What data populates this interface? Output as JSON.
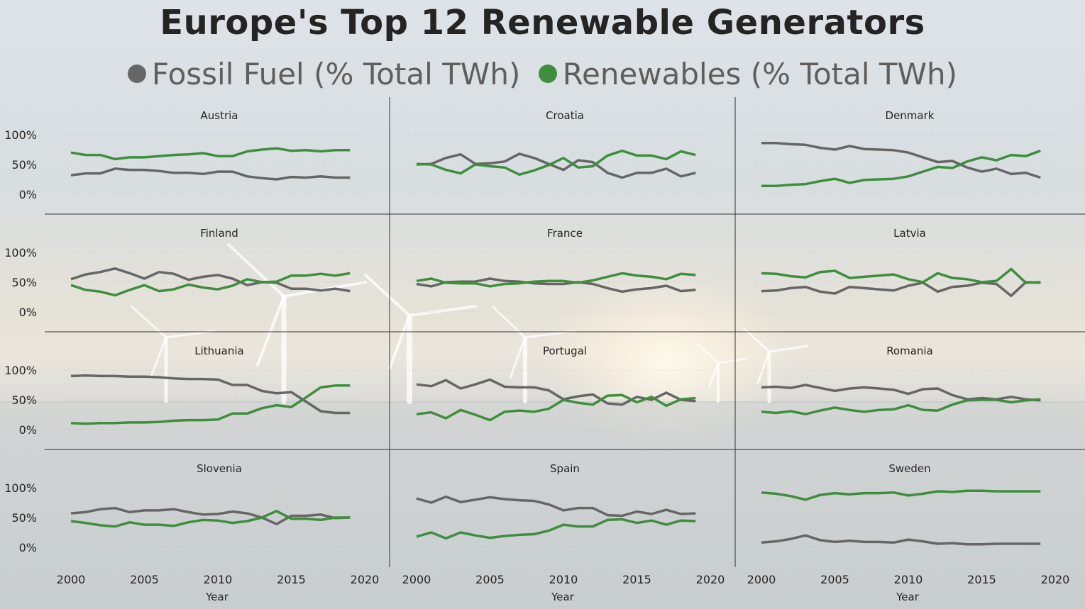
{
  "title": "Europe's Top 12 Renewable Generators",
  "legend": [
    {
      "label": "Fossil Fuel (% Total TWh)",
      "color": "#666666"
    },
    {
      "label": "Renewables (% Total TWh)",
      "color": "#3e8e3e"
    }
  ],
  "axis": {
    "xlabel": "Year",
    "x_ticks": [
      "2000",
      "2005",
      "2010",
      "2015",
      "2020"
    ],
    "y_ticks": [
      "100%",
      "50%",
      "0%"
    ]
  },
  "chart_data": [
    {
      "type": "line",
      "title": "Austria",
      "x": [
        2000,
        2001,
        2002,
        2003,
        2004,
        2005,
        2006,
        2007,
        2008,
        2009,
        2010,
        2011,
        2012,
        2013,
        2014,
        2015,
        2016,
        2017,
        2018,
        2019
      ],
      "xlim": [
        2000,
        2020
      ],
      "ylim": [
        0,
        100
      ],
      "series": [
        {
          "name": "Fossil Fuel (% Total TWh)",
          "values": [
            32,
            35,
            35,
            43,
            41,
            41,
            39,
            36,
            36,
            34,
            38,
            38,
            30,
            27,
            25,
            29,
            28,
            30,
            28,
            28
          ]
        },
        {
          "name": "Renewables (% Total TWh)",
          "values": [
            70,
            66,
            66,
            59,
            62,
            62,
            64,
            66,
            67,
            69,
            64,
            64,
            72,
            75,
            77,
            73,
            74,
            72,
            74,
            74
          ]
        }
      ]
    },
    {
      "type": "line",
      "title": "Croatia",
      "x": [
        2000,
        2001,
        2002,
        2003,
        2004,
        2005,
        2006,
        2007,
        2008,
        2009,
        2010,
        2011,
        2012,
        2013,
        2014,
        2015,
        2016,
        2017,
        2018,
        2019
      ],
      "xlim": [
        2000,
        2020
      ],
      "ylim": [
        0,
        100
      ],
      "series": [
        {
          "name": "Fossil Fuel (% Total TWh)",
          "values": [
            50,
            51,
            61,
            67,
            51,
            52,
            55,
            68,
            61,
            51,
            41,
            57,
            54,
            36,
            28,
            36,
            36,
            43,
            30,
            36
          ]
        },
        {
          "name": "Renewables (% Total TWh)",
          "values": [
            51,
            50,
            41,
            35,
            50,
            47,
            45,
            33,
            40,
            49,
            61,
            45,
            47,
            65,
            73,
            65,
            65,
            59,
            72,
            66
          ]
        }
      ]
    },
    {
      "type": "line",
      "title": "Denmark",
      "x": [
        2000,
        2001,
        2002,
        2003,
        2004,
        2005,
        2006,
        2007,
        2008,
        2009,
        2010,
        2011,
        2012,
        2013,
        2014,
        2015,
        2016,
        2017,
        2018,
        2019
      ],
      "xlim": [
        2000,
        2020
      ],
      "ylim": [
        0,
        100
      ],
      "series": [
        {
          "name": "Fossil Fuel (% Total TWh)",
          "values": [
            86,
            86,
            84,
            83,
            78,
            75,
            81,
            76,
            75,
            74,
            70,
            62,
            54,
            56,
            45,
            38,
            43,
            34,
            36,
            28
          ]
        },
        {
          "name": "Renewables (% Total TWh)",
          "values": [
            14,
            14,
            16,
            17,
            22,
            26,
            19,
            24,
            25,
            26,
            30,
            38,
            46,
            44,
            55,
            62,
            57,
            66,
            64,
            73
          ]
        }
      ]
    },
    {
      "type": "line",
      "title": "Finland",
      "x": [
        2000,
        2001,
        2002,
        2003,
        2004,
        2005,
        2006,
        2007,
        2008,
        2009,
        2010,
        2011,
        2012,
        2013,
        2014,
        2015,
        2016,
        2017,
        2018,
        2019
      ],
      "xlim": [
        2000,
        2020
      ],
      "ylim": [
        0,
        100
      ],
      "series": [
        {
          "name": "Fossil Fuel (% Total TWh)",
          "values": [
            55,
            63,
            67,
            73,
            65,
            56,
            67,
            64,
            54,
            59,
            62,
            56,
            45,
            50,
            49,
            39,
            39,
            36,
            39,
            35
          ]
        },
        {
          "name": "Renewables (% Total TWh)",
          "values": [
            45,
            37,
            34,
            28,
            37,
            45,
            35,
            38,
            46,
            41,
            38,
            44,
            55,
            50,
            51,
            61,
            61,
            64,
            61,
            65
          ]
        }
      ]
    },
    {
      "type": "line",
      "title": "France",
      "x": [
        2000,
        2001,
        2002,
        2003,
        2004,
        2005,
        2006,
        2007,
        2008,
        2009,
        2010,
        2011,
        2012,
        2013,
        2014,
        2015,
        2016,
        2017,
        2018,
        2019
      ],
      "xlim": [
        2000,
        2020
      ],
      "ylim": [
        0,
        100
      ],
      "series": [
        {
          "name": "Fossil Fuel (% Total TWh)",
          "values": [
            47,
            43,
            50,
            51,
            51,
            56,
            52,
            51,
            48,
            47,
            47,
            50,
            47,
            40,
            34,
            38,
            40,
            44,
            35,
            37
          ]
        },
        {
          "name": "Renewables (% Total TWh)",
          "values": [
            52,
            56,
            49,
            48,
            48,
            43,
            47,
            48,
            51,
            52,
            52,
            49,
            53,
            59,
            65,
            61,
            59,
            55,
            64,
            62
          ]
        }
      ]
    },
    {
      "type": "line",
      "title": "Latvia",
      "x": [
        2000,
        2001,
        2002,
        2003,
        2004,
        2005,
        2006,
        2007,
        2008,
        2009,
        2010,
        2011,
        2012,
        2013,
        2014,
        2015,
        2016,
        2017,
        2018,
        2019
      ],
      "xlim": [
        2000,
        2020
      ],
      "ylim": [
        0,
        100
      ],
      "series": [
        {
          "name": "Fossil Fuel (% Total TWh)",
          "values": [
            35,
            36,
            40,
            42,
            34,
            31,
            42,
            40,
            38,
            36,
            44,
            49,
            34,
            42,
            44,
            49,
            47,
            27,
            50,
            49
          ]
        },
        {
          "name": "Renewables (% Total TWh)",
          "values": [
            65,
            64,
            60,
            58,
            67,
            69,
            57,
            59,
            61,
            63,
            55,
            50,
            65,
            57,
            55,
            50,
            52,
            72,
            49,
            50
          ]
        }
      ]
    },
    {
      "type": "line",
      "title": "Lithuania",
      "x": [
        2000,
        2001,
        2002,
        2003,
        2004,
        2005,
        2006,
        2007,
        2008,
        2009,
        2010,
        2011,
        2012,
        2013,
        2014,
        2015,
        2016,
        2017,
        2018,
        2019
      ],
      "xlim": [
        2000,
        2020
      ],
      "ylim": [
        0,
        100
      ],
      "series": [
        {
          "name": "Fossil Fuel (% Total TWh)",
          "values": [
            90,
            91,
            90,
            90,
            89,
            89,
            88,
            86,
            85,
            85,
            84,
            75,
            75,
            65,
            61,
            63,
            47,
            31,
            28,
            28
          ]
        },
        {
          "name": "Renewables (% Total TWh)",
          "values": [
            11,
            10,
            11,
            11,
            12,
            12,
            13,
            15,
            16,
            16,
            17,
            27,
            27,
            36,
            41,
            38,
            54,
            71,
            74,
            74
          ]
        }
      ]
    },
    {
      "type": "line",
      "title": "Portugal",
      "x": [
        2000,
        2001,
        2002,
        2003,
        2004,
        2005,
        2006,
        2007,
        2008,
        2009,
        2010,
        2011,
        2012,
        2013,
        2014,
        2015,
        2016,
        2017,
        2018,
        2019
      ],
      "xlim": [
        2000,
        2020
      ],
      "ylim": [
        0,
        100
      ],
      "series": [
        {
          "name": "Fossil Fuel (% Total TWh)",
          "values": [
            76,
            73,
            83,
            69,
            76,
            84,
            72,
            71,
            71,
            66,
            51,
            56,
            59,
            44,
            42,
            55,
            50,
            62,
            50,
            48
          ]
        },
        {
          "name": "Renewables (% Total TWh)",
          "values": [
            26,
            29,
            19,
            33,
            25,
            16,
            30,
            32,
            30,
            35,
            50,
            45,
            42,
            57,
            58,
            46,
            55,
            40,
            51,
            53
          ]
        }
      ]
    },
    {
      "type": "line",
      "title": "Romania",
      "x": [
        2000,
        2001,
        2002,
        2003,
        2004,
        2005,
        2006,
        2007,
        2008,
        2009,
        2010,
        2011,
        2012,
        2013,
        2014,
        2015,
        2016,
        2017,
        2018,
        2019
      ],
      "xlim": [
        2000,
        2020
      ],
      "ylim": [
        0,
        100
      ],
      "series": [
        {
          "name": "Fossil Fuel (% Total TWh)",
          "values": [
            71,
            72,
            70,
            75,
            70,
            65,
            69,
            71,
            69,
            67,
            60,
            68,
            69,
            58,
            51,
            53,
            51,
            55,
            51,
            49
          ]
        },
        {
          "name": "Renewables (% Total TWh)",
          "values": [
            30,
            28,
            31,
            26,
            32,
            37,
            33,
            30,
            33,
            34,
            41,
            33,
            32,
            42,
            49,
            50,
            50,
            46,
            49,
            51
          ]
        }
      ]
    },
    {
      "type": "line",
      "title": "Slovenia",
      "x": [
        2000,
        2001,
        2002,
        2003,
        2004,
        2005,
        2006,
        2007,
        2008,
        2009,
        2010,
        2011,
        2012,
        2013,
        2014,
        2015,
        2016,
        2017,
        2018,
        2019
      ],
      "xlim": [
        2000,
        2020
      ],
      "ylim": [
        0,
        100
      ],
      "series": [
        {
          "name": "Fossil Fuel (% Total TWh)",
          "values": [
            57,
            59,
            64,
            66,
            59,
            62,
            62,
            64,
            59,
            55,
            56,
            60,
            57,
            50,
            39,
            53,
            53,
            55,
            49,
            50
          ]
        },
        {
          "name": "Renewables (% Total TWh)",
          "values": [
            44,
            41,
            37,
            35,
            42,
            38,
            38,
            36,
            42,
            46,
            45,
            41,
            44,
            50,
            61,
            48,
            48,
            46,
            50,
            50
          ]
        }
      ]
    },
    {
      "type": "line",
      "title": "Spain",
      "x": [
        2000,
        2001,
        2002,
        2003,
        2004,
        2005,
        2006,
        2007,
        2008,
        2009,
        2010,
        2011,
        2012,
        2013,
        2014,
        2015,
        2016,
        2017,
        2018,
        2019
      ],
      "xlim": [
        2000,
        2020
      ],
      "ylim": [
        0,
        100
      ],
      "series": [
        {
          "name": "Fossil Fuel (% Total TWh)",
          "values": [
            82,
            75,
            85,
            76,
            80,
            84,
            81,
            79,
            78,
            72,
            62,
            66,
            66,
            54,
            53,
            60,
            56,
            63,
            56,
            57
          ]
        },
        {
          "name": "Renewables (% Total TWh)",
          "values": [
            18,
            25,
            15,
            25,
            20,
            16,
            19,
            21,
            22,
            28,
            38,
            35,
            35,
            46,
            47,
            41,
            45,
            38,
            45,
            44
          ]
        }
      ]
    },
    {
      "type": "line",
      "title": "Sweden",
      "x": [
        2000,
        2001,
        2002,
        2003,
        2004,
        2005,
        2006,
        2007,
        2008,
        2009,
        2010,
        2011,
        2012,
        2013,
        2014,
        2015,
        2016,
        2017,
        2018,
        2019
      ],
      "xlim": [
        2000,
        2020
      ],
      "ylim": [
        0,
        100
      ],
      "series": [
        {
          "name": "Fossil Fuel (% Total TWh)",
          "values": [
            8,
            10,
            14,
            20,
            12,
            9,
            11,
            9,
            9,
            8,
            13,
            10,
            6,
            7,
            5,
            5,
            6,
            6,
            6,
            6
          ]
        },
        {
          "name": "Renewables (% Total TWh)",
          "values": [
            92,
            90,
            86,
            80,
            88,
            91,
            89,
            91,
            91,
            92,
            87,
            90,
            94,
            93,
            95,
            95,
            94,
            94,
            94,
            94
          ]
        }
      ]
    }
  ]
}
